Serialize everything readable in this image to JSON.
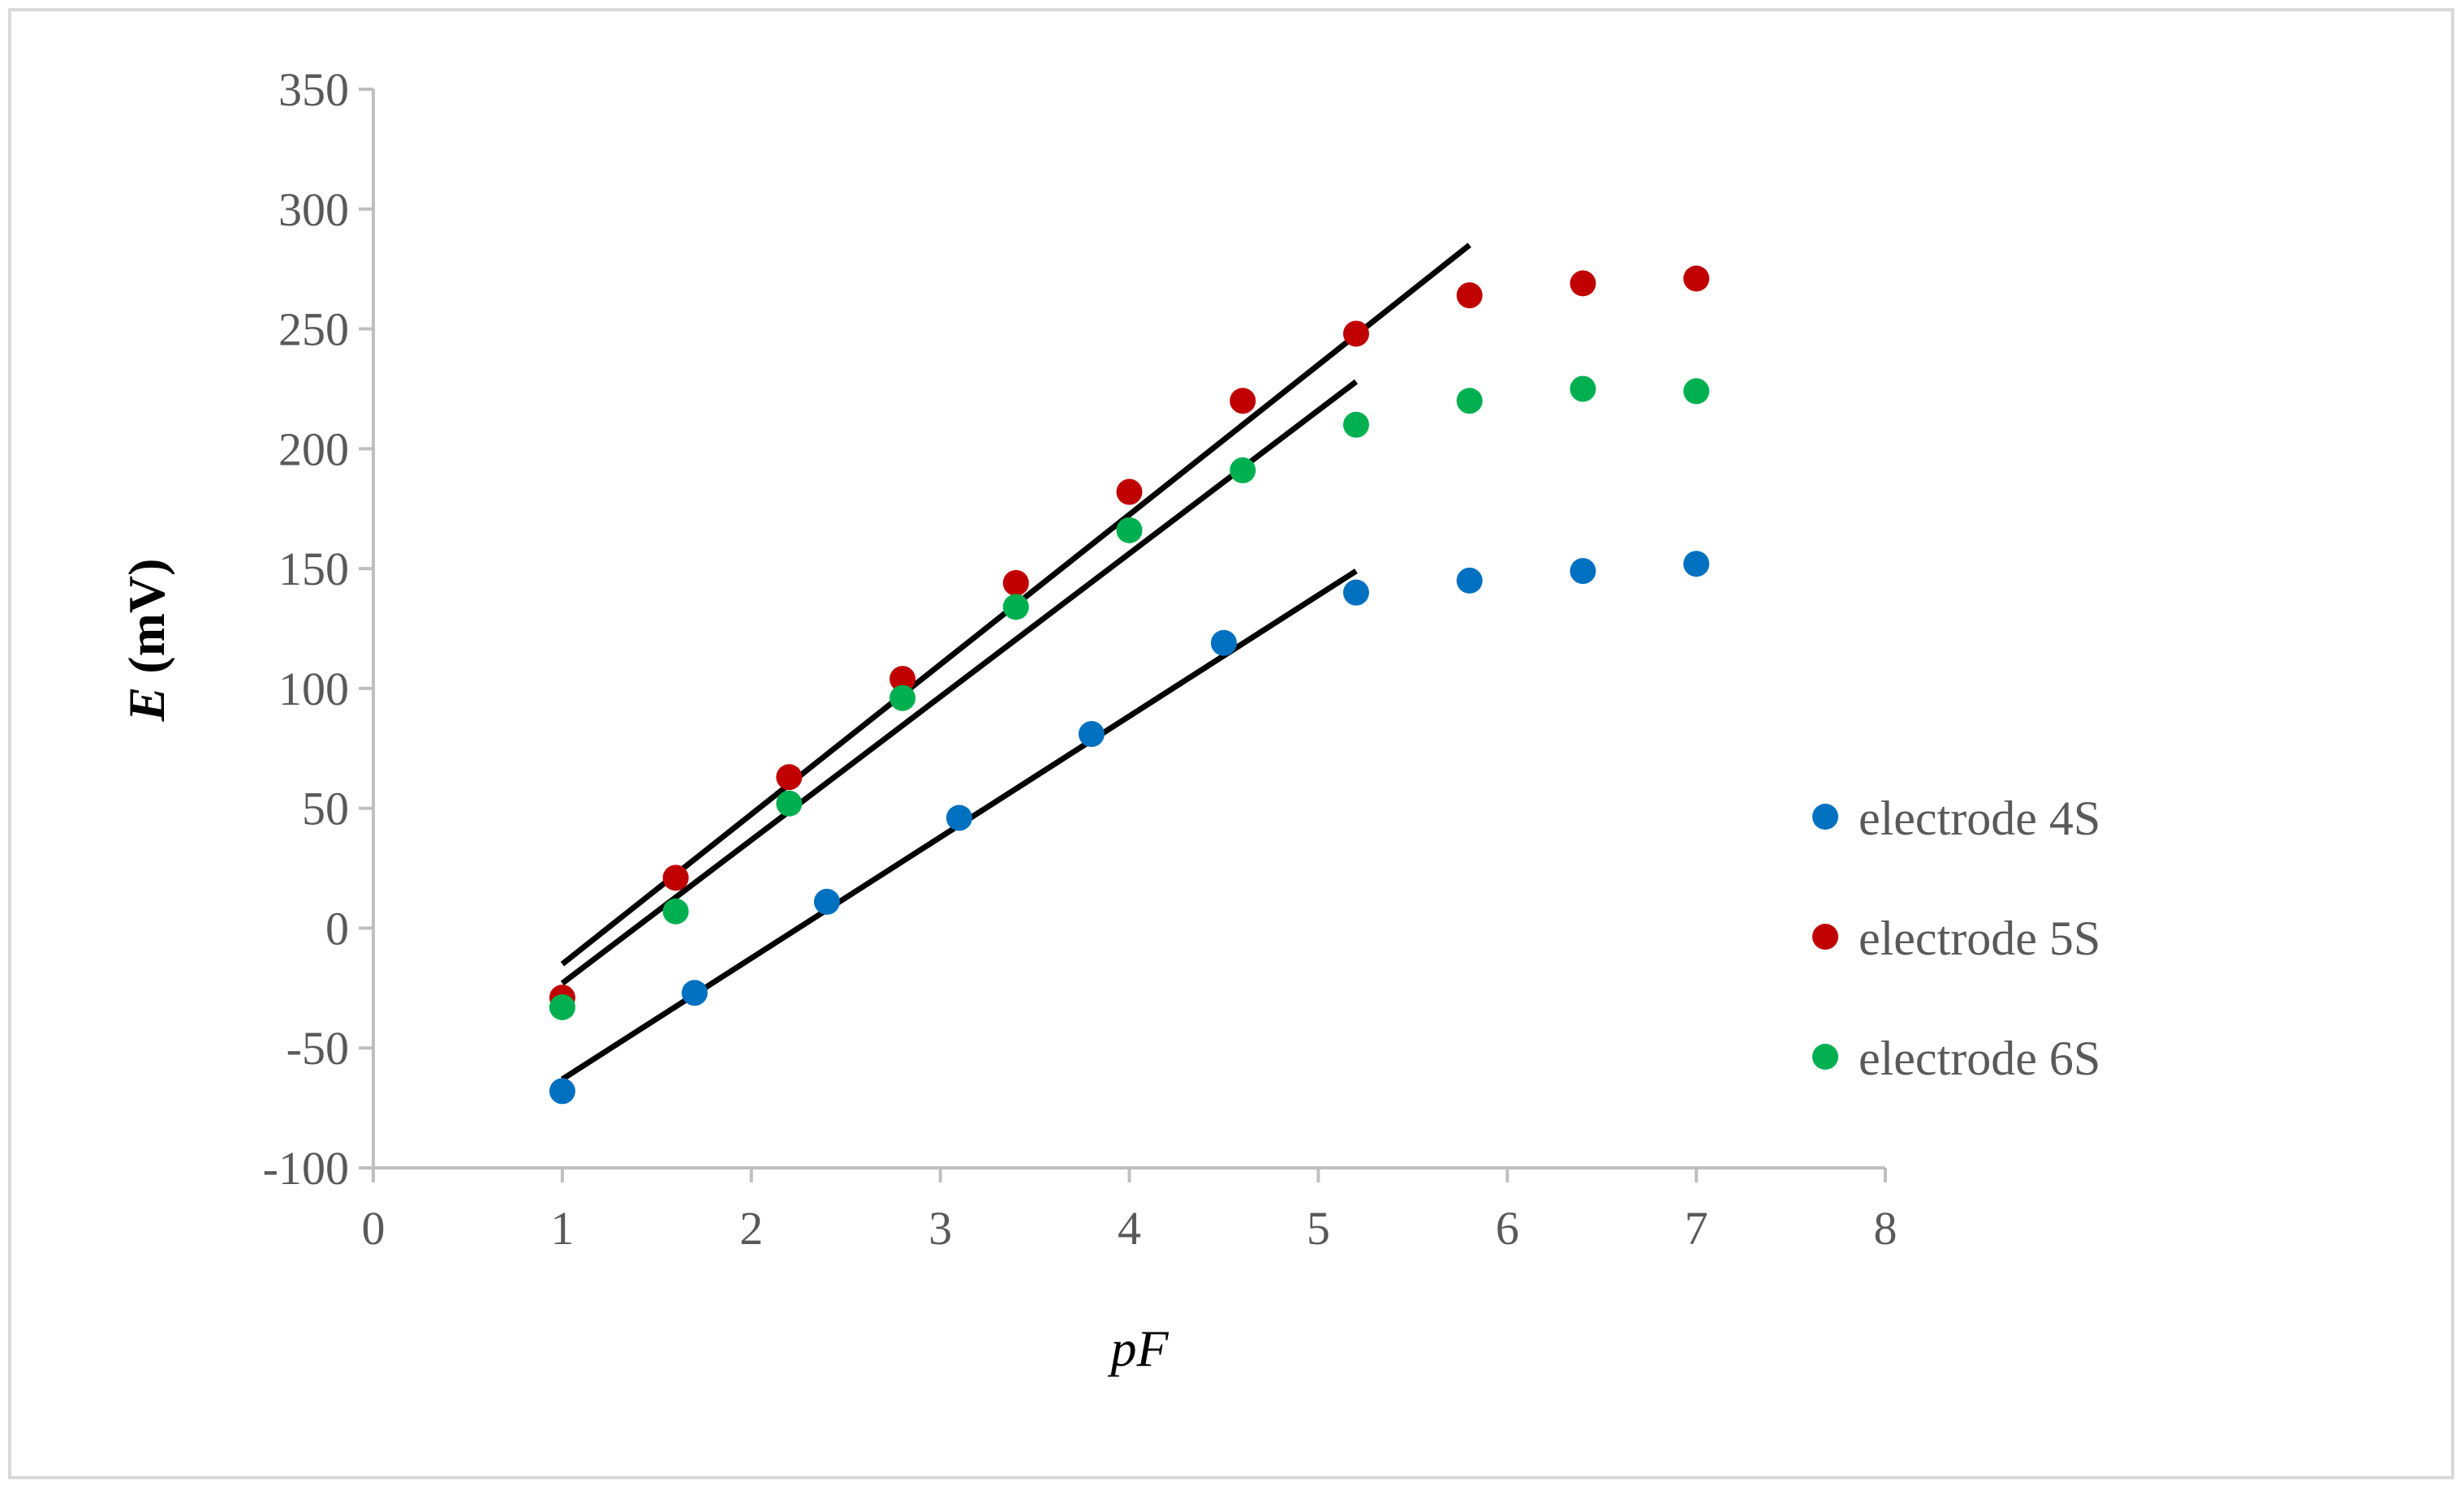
{
  "chart_data": {
    "type": "scatter",
    "title": "",
    "xlabel": "pF",
    "ylabel_italic": "E",
    "ylabel_rest": " (mV)",
    "xlim": [
      0,
      8
    ],
    "ylim": [
      -100,
      350
    ],
    "xticks": [
      0,
      1,
      2,
      3,
      4,
      5,
      6,
      7,
      8
    ],
    "yticks": [
      -100,
      -50,
      0,
      50,
      100,
      150,
      200,
      250,
      300,
      350
    ],
    "grid": false,
    "legend_position": "right",
    "series": [
      {
        "name": "electrode 4S",
        "color": "#0070c0",
        "x": [
          1,
          1.7,
          2.4,
          3.1,
          3.8,
          4.5,
          5.2,
          5.8,
          6.4,
          7
        ],
        "y": [
          -68,
          -27,
          11,
          46,
          81,
          119,
          140,
          145,
          149,
          152
        ],
        "fit": {
          "x0": 1,
          "y0": -63,
          "x1": 5.2,
          "y1": 149
        }
      },
      {
        "name": "electrode 5S",
        "color": "#c00000",
        "x": [
          1,
          1.6,
          2.2,
          2.8,
          3.4,
          4,
          4.6,
          5.2,
          5.8,
          6.4,
          7
        ],
        "y": [
          -29,
          21,
          63,
          104,
          144,
          182,
          220,
          248,
          264,
          269,
          271
        ],
        "fit": {
          "x0": 1,
          "y0": -15,
          "x1": 5.8,
          "y1": 285
        }
      },
      {
        "name": "electrode 6S",
        "color": "#00b050",
        "x": [
          1,
          1.6,
          2.2,
          2.8,
          3.4,
          4,
          4.6,
          5.2,
          5.8,
          6.4,
          7
        ],
        "y": [
          -33,
          7,
          52,
          96,
          134,
          166,
          191,
          210,
          220,
          225,
          224
        ],
        "fit": {
          "x0": 1,
          "y0": -23,
          "x1": 5.2,
          "y1": 228
        }
      }
    ]
  }
}
